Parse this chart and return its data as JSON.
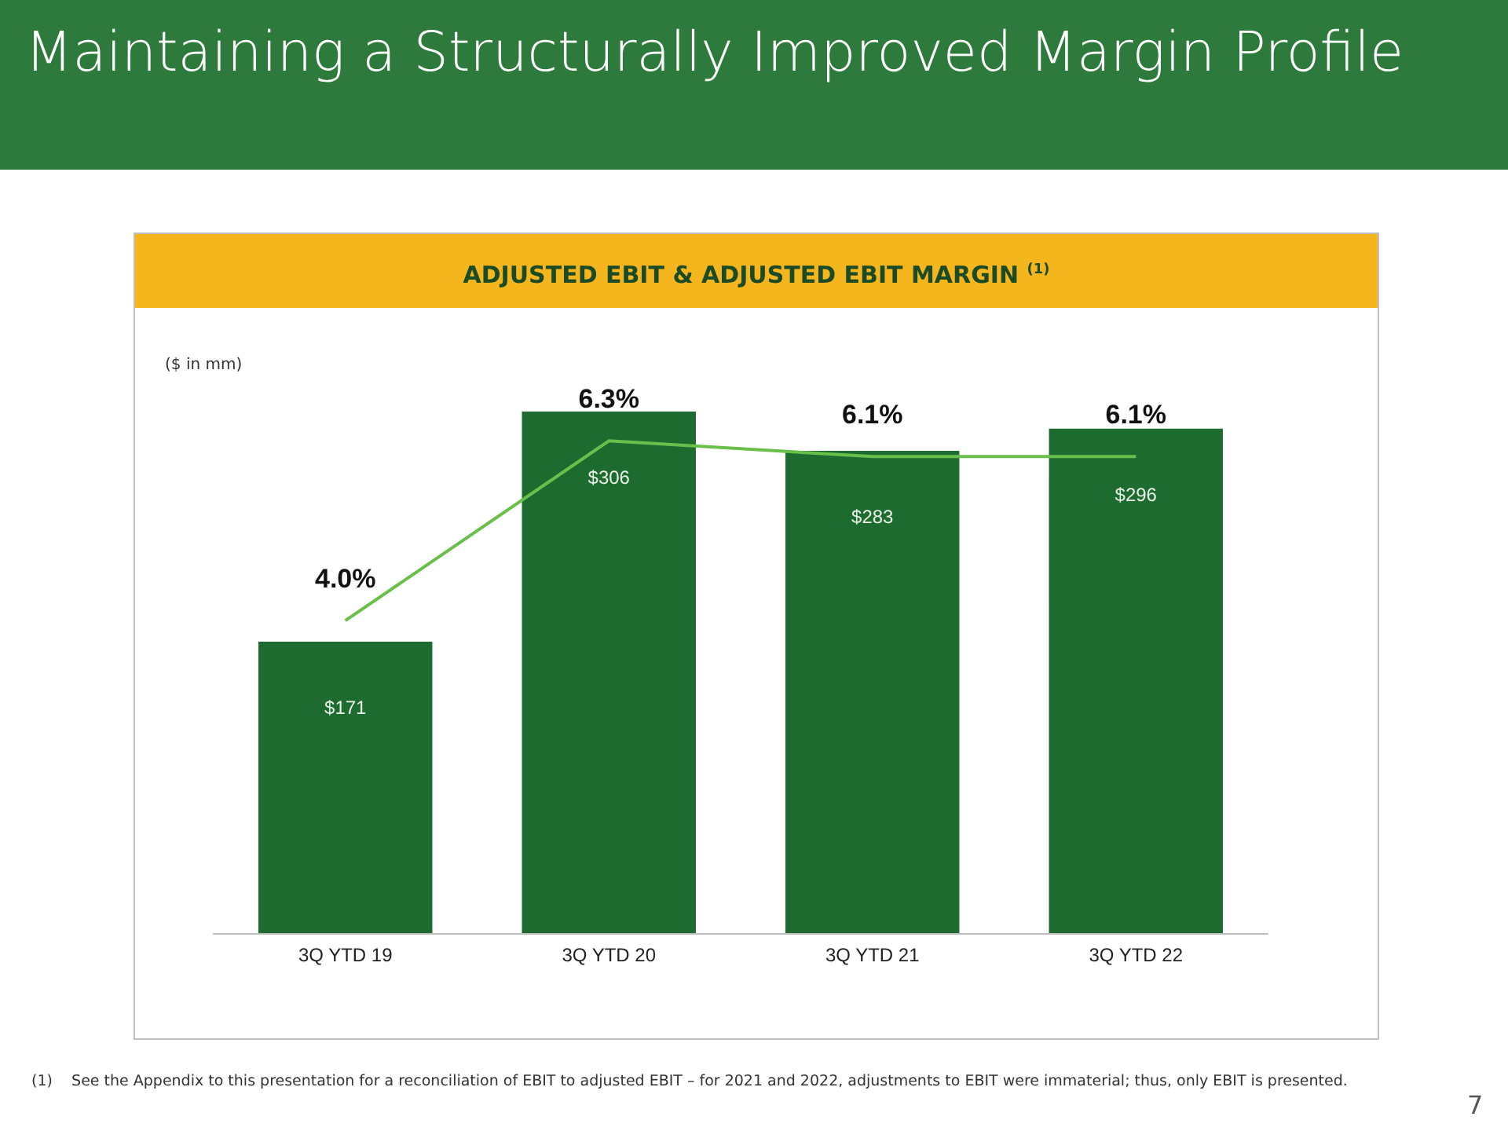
{
  "chart_data": {
    "type": "bar",
    "title": "Maintaining a Structurally Improved Margin Profile",
    "subtitle": "ADJUSTED EBIT & ADJUSTED EBIT MARGIN $^{(1)}$",
    "ylabel": "($ in mm)",
    "categories": [
      "3Q YTD 19",
      "3Q YTD 20",
      "3Q YTD 21",
      "3Q YTD 22"
    ],
    "series": [
      {
        "color": "#1e6b30",
        "values": [
          171,
          306,
          283,
          296
        ],
        "value_labels": [
          "$171",
          "$306",
          "$283",
          "$296"
        ]
      },
      {
        "type": "line",
        "axis": "y2",
        "color": "#6abf4b",
        "values": [
          4.0,
          6.3,
          6.1,
          6.1
        ],
        "value_labels": [
          "4.0%",
          "6.3%",
          "6.1%",
          "6.1%"
        ]
      }
    ],
    "marker": "none",
    "line_style": "solid",
    "annotations": [
      "(1)    See the Appendix to this presentation for a reconciliation of EBIT to adjusted EBIT – for 2021 and 2022, adjustments to EBIT were immaterial; thus, only EBIT is presented.",
      "7"
    ]
  }
}
